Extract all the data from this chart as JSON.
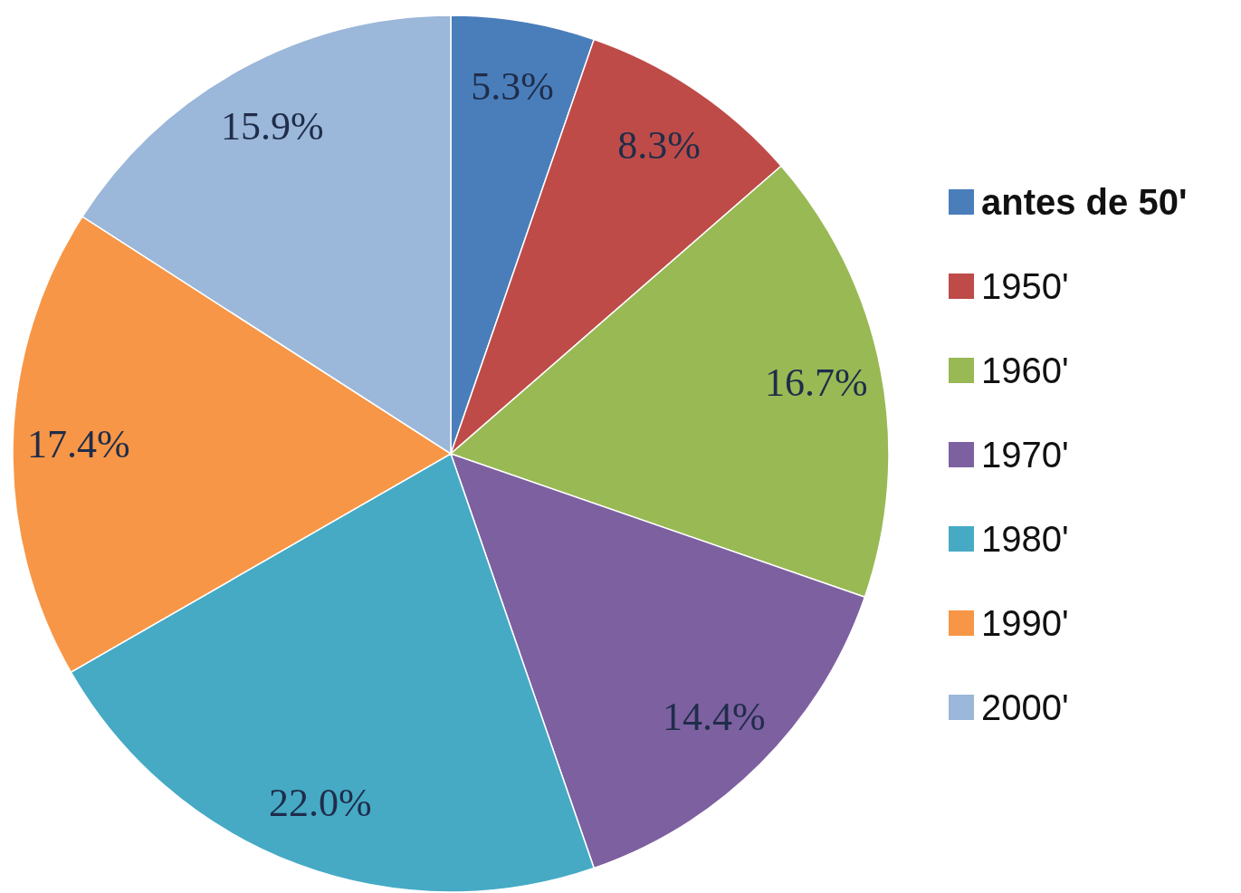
{
  "chart_data": {
    "type": "pie",
    "categories": [
      "antes de 50'",
      "1950'",
      "1960'",
      "1970'",
      "1980'",
      "1990'",
      "2000'"
    ],
    "values": [
      5.3,
      8.3,
      16.7,
      14.4,
      22.0,
      17.4,
      15.9
    ],
    "value_labels": [
      "5.3%",
      "8.3%",
      "16.7%",
      "14.4%",
      "22.0%",
      "17.4%",
      "15.9%"
    ],
    "colors": [
      "#4a7ebb",
      "#be4b48",
      "#98b954",
      "#7d60a0",
      "#46aac5",
      "#f79646",
      "#9bb7d9"
    ],
    "legend": "right"
  }
}
